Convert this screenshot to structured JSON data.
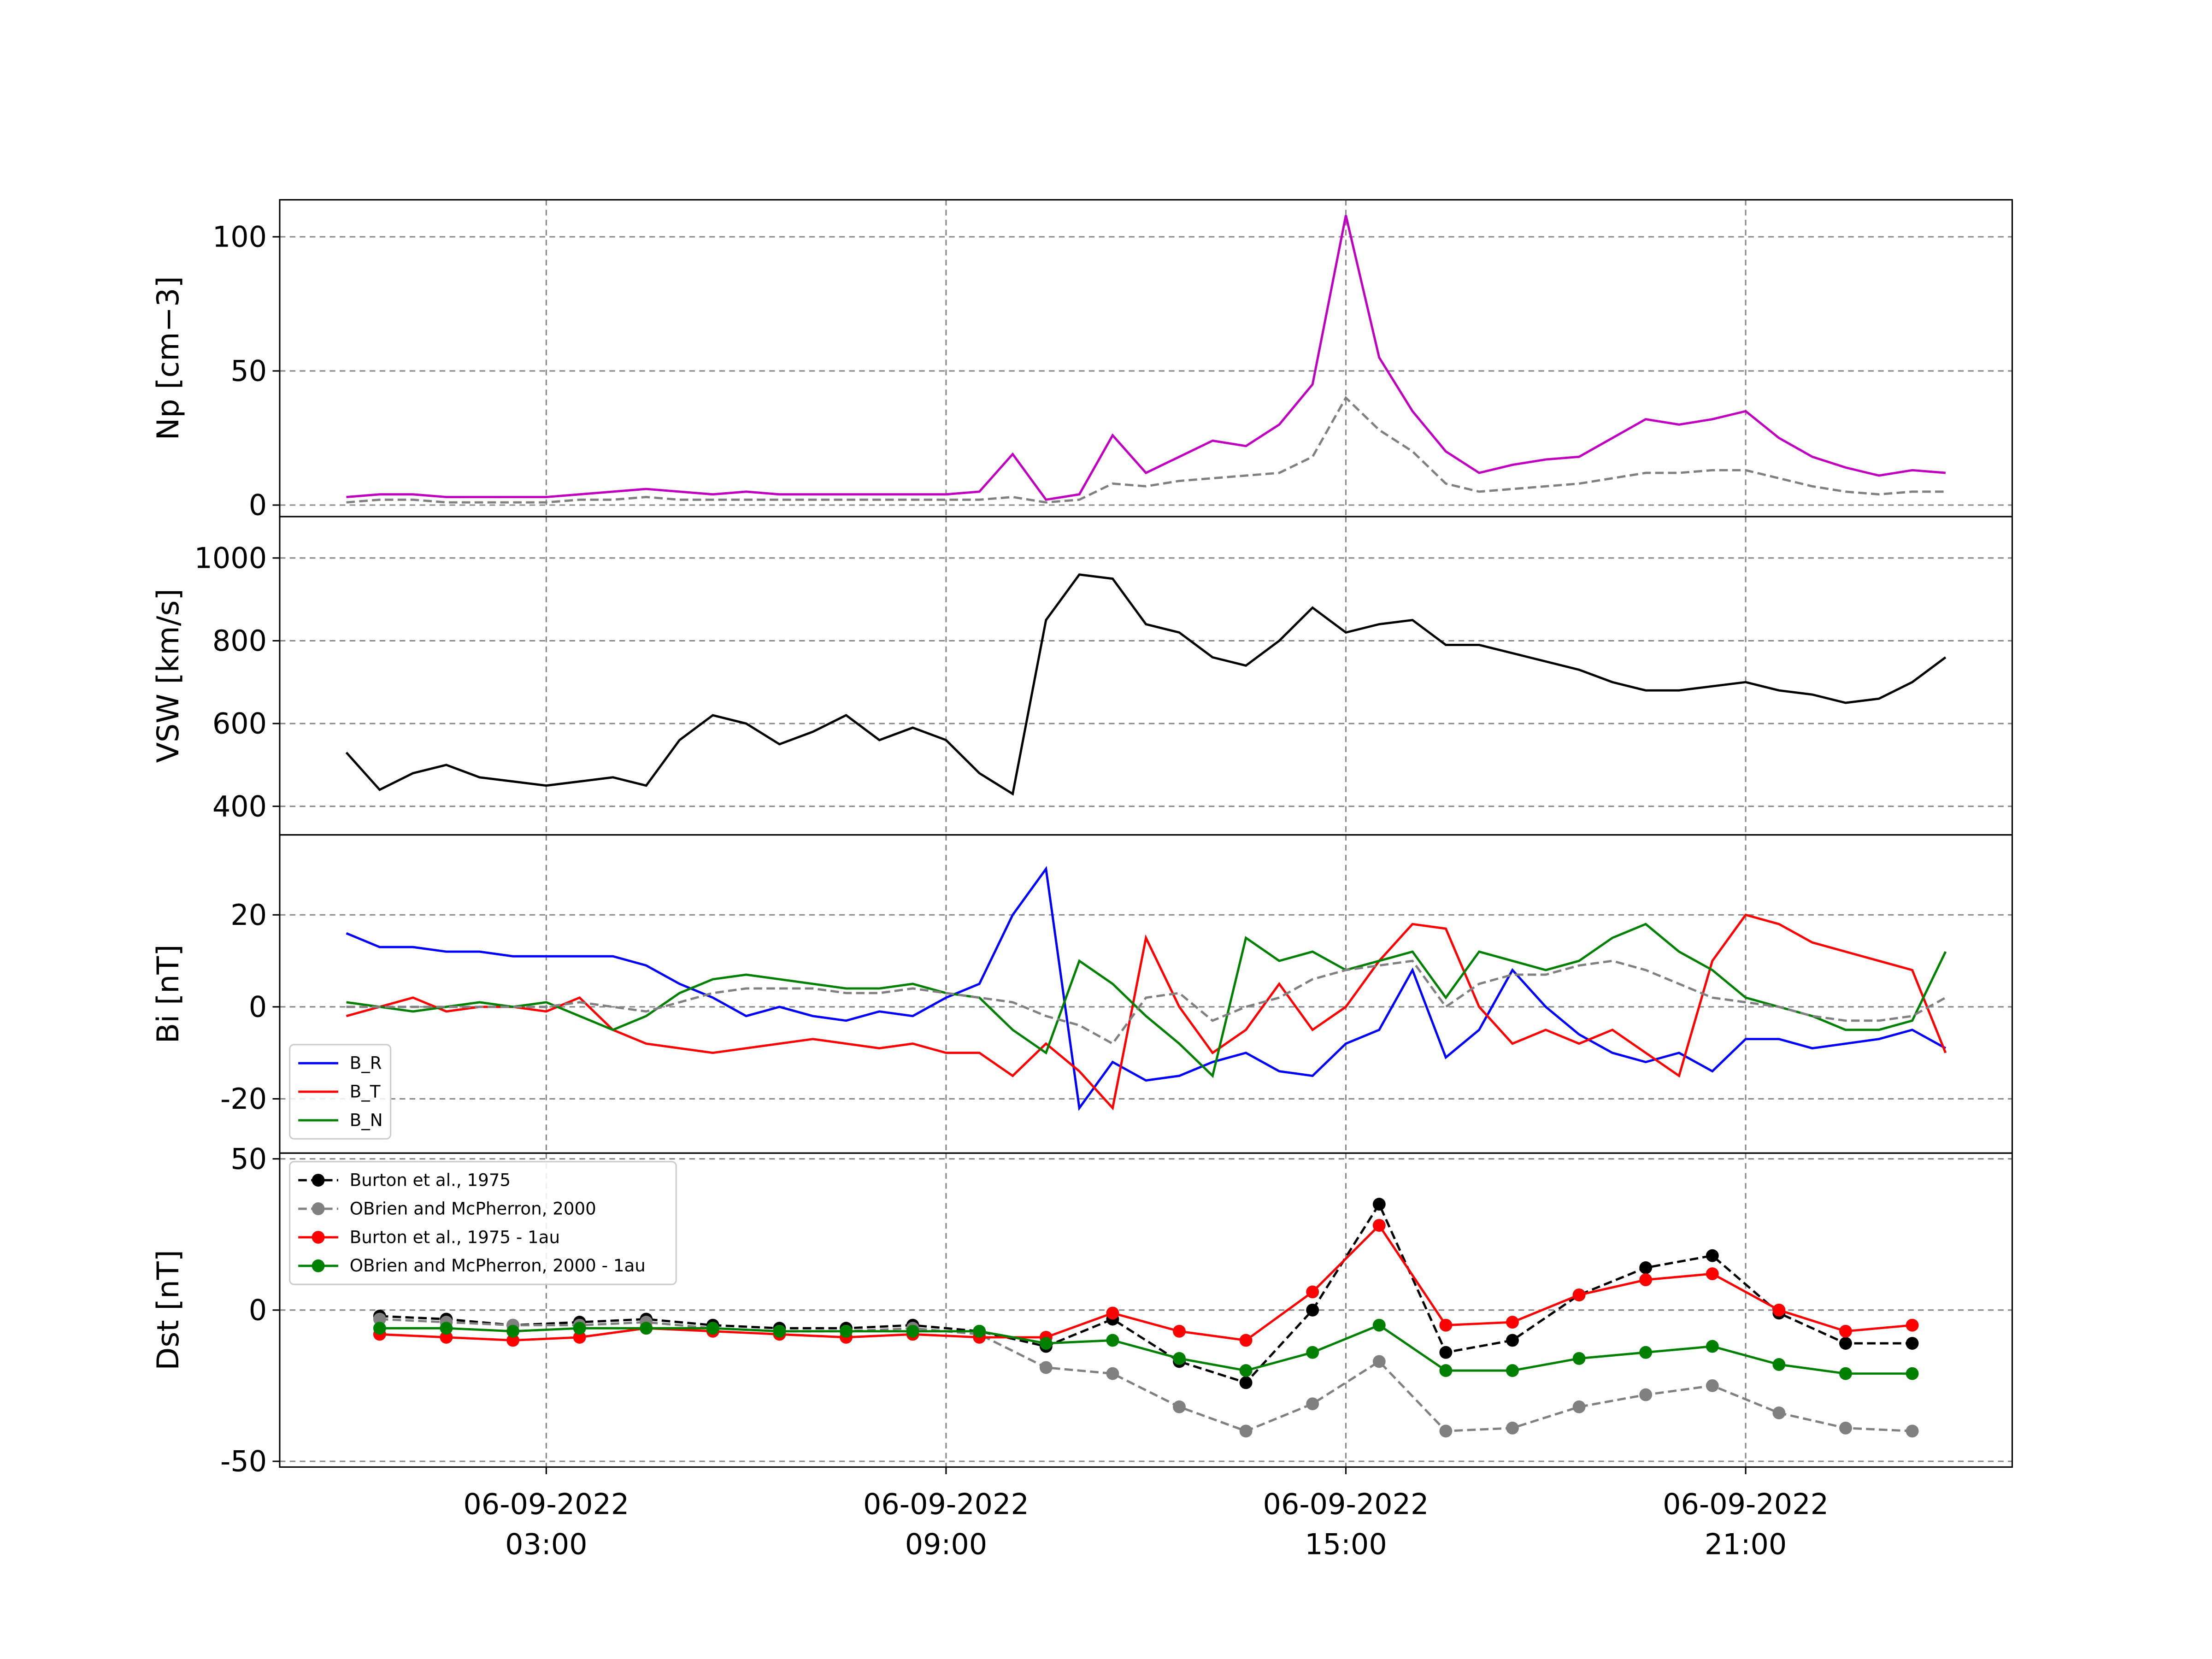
{
  "chart_data": [
    {
      "type": "line",
      "ylabel": "Np [cm−3]",
      "x": [
        "06-09-2022 00:00",
        "06-09-2022 00:30",
        "06-09-2022 01:00",
        "06-09-2022 01:30",
        "06-09-2022 02:00",
        "06-09-2022 02:30",
        "06-09-2022 03:00",
        "06-09-2022 03:30",
        "06-09-2022 04:00",
        "06-09-2022 04:30",
        "06-09-2022 05:00",
        "06-09-2022 05:30",
        "06-09-2022 06:00",
        "06-09-2022 06:30",
        "06-09-2022 07:00",
        "06-09-2022 07:30",
        "06-09-2022 08:00",
        "06-09-2022 08:30",
        "06-09-2022 09:00",
        "06-09-2022 09:30",
        "06-09-2022 10:00",
        "06-09-2022 10:30",
        "06-09-2022 11:00",
        "06-09-2022 11:30",
        "06-09-2022 12:00",
        "06-09-2022 12:30",
        "06-09-2022 13:00",
        "06-09-2022 13:30",
        "06-09-2022 14:00",
        "06-09-2022 14:30",
        "06-09-2022 15:00",
        "06-09-2022 15:30",
        "06-09-2022 16:00",
        "06-09-2022 16:30",
        "06-09-2022 17:00",
        "06-09-2022 17:30",
        "06-09-2022 18:00",
        "06-09-2022 18:30",
        "06-09-2022 19:00",
        "06-09-2022 19:30",
        "06-09-2022 20:00",
        "06-09-2022 20:30",
        "06-09-2022 21:00",
        "06-09-2022 21:30",
        "06-09-2022 22:00",
        "06-09-2022 22:30",
        "06-09-2022 23:00",
        "06-09-2022 23:30",
        "07-09-2022 00:00"
      ],
      "series": [
        {
          "color": "#c000c0",
          "values": [
            3,
            4,
            4,
            3,
            3,
            3,
            3,
            4,
            5,
            6,
            5,
            4,
            5,
            4,
            4,
            4,
            4,
            4,
            4,
            5,
            19,
            2,
            4,
            26,
            12,
            18,
            24,
            22,
            30,
            45,
            108,
            55,
            35,
            20,
            12,
            15,
            17,
            18,
            25,
            32,
            30,
            32,
            35,
            25,
            18,
            14,
            11,
            13,
            12
          ]
        },
        {
          "color": "#808080",
          "dashed": true,
          "values": [
            1,
            2,
            2,
            1,
            1,
            1,
            1,
            2,
            2,
            3,
            2,
            2,
            2,
            2,
            2,
            2,
            2,
            2,
            2,
            2,
            3,
            1,
            2,
            8,
            7,
            9,
            10,
            11,
            12,
            18,
            40,
            28,
            20,
            8,
            5,
            6,
            7,
            8,
            10,
            12,
            12,
            13,
            13,
            10,
            7,
            5,
            4,
            5,
            5
          ]
        }
      ],
      "xlim": [
        "05-09-2022 23:00",
        "07-09-2022 01:00"
      ],
      "ylim": [
        -4.3,
        113.8
      ],
      "yticks": [
        0,
        50,
        100
      ],
      "grid": true
    },
    {
      "type": "line",
      "ylabel": "VSW [km/s]",
      "x": [
        "06-09-2022 00:00",
        "06-09-2022 00:30",
        "06-09-2022 01:00",
        "06-09-2022 01:30",
        "06-09-2022 02:00",
        "06-09-2022 02:30",
        "06-09-2022 03:00",
        "06-09-2022 03:30",
        "06-09-2022 04:00",
        "06-09-2022 04:30",
        "06-09-2022 05:00",
        "06-09-2022 05:30",
        "06-09-2022 06:00",
        "06-09-2022 06:30",
        "06-09-2022 07:00",
        "06-09-2022 07:30",
        "06-09-2022 08:00",
        "06-09-2022 08:30",
        "06-09-2022 09:00",
        "06-09-2022 09:30",
        "06-09-2022 10:00",
        "06-09-2022 10:30",
        "06-09-2022 11:00",
        "06-09-2022 11:30",
        "06-09-2022 12:00",
        "06-09-2022 12:30",
        "06-09-2022 13:00",
        "06-09-2022 13:30",
        "06-09-2022 14:00",
        "06-09-2022 14:30",
        "06-09-2022 15:00",
        "06-09-2022 15:30",
        "06-09-2022 16:00",
        "06-09-2022 16:30",
        "06-09-2022 17:00",
        "06-09-2022 17:30",
        "06-09-2022 18:00",
        "06-09-2022 18:30",
        "06-09-2022 19:00",
        "06-09-2022 19:30",
        "06-09-2022 20:00",
        "06-09-2022 20:30",
        "06-09-2022 21:00",
        "06-09-2022 21:30",
        "06-09-2022 22:00",
        "06-09-2022 22:30",
        "06-09-2022 23:00",
        "06-09-2022 23:30",
        "07-09-2022 00:00"
      ],
      "series": [
        {
          "color": "#000000",
          "values": [
            530,
            440,
            480,
            500,
            470,
            460,
            450,
            460,
            470,
            450,
            560,
            620,
            600,
            550,
            580,
            620,
            560,
            590,
            560,
            480,
            430,
            850,
            960,
            950,
            840,
            820,
            760,
            740,
            800,
            880,
            820,
            840,
            850,
            790,
            790,
            770,
            750,
            730,
            700,
            680,
            680,
            690,
            700,
            680,
            670,
            650,
            660,
            700,
            760
          ]
        }
      ],
      "xlim": [
        "05-09-2022 23:00",
        "07-09-2022 01:00"
      ],
      "ylim": [
        331,
        1100
      ],
      "yticks": [
        400,
        600,
        800,
        1000
      ],
      "grid": true
    },
    {
      "type": "line",
      "ylabel": "Bi [nT]",
      "legend": "lower left",
      "x": [
        "06-09-2022 00:00",
        "06-09-2022 00:30",
        "06-09-2022 01:00",
        "06-09-2022 01:30",
        "06-09-2022 02:00",
        "06-09-2022 02:30",
        "06-09-2022 03:00",
        "06-09-2022 03:30",
        "06-09-2022 04:00",
        "06-09-2022 04:30",
        "06-09-2022 05:00",
        "06-09-2022 05:30",
        "06-09-2022 06:00",
        "06-09-2022 06:30",
        "06-09-2022 07:00",
        "06-09-2022 07:30",
        "06-09-2022 08:00",
        "06-09-2022 08:30",
        "06-09-2022 09:00",
        "06-09-2022 09:30",
        "06-09-2022 10:00",
        "06-09-2022 10:30",
        "06-09-2022 11:00",
        "06-09-2022 11:30",
        "06-09-2022 12:00",
        "06-09-2022 12:30",
        "06-09-2022 13:00",
        "06-09-2022 13:30",
        "06-09-2022 14:00",
        "06-09-2022 14:30",
        "06-09-2022 15:00",
        "06-09-2022 15:30",
        "06-09-2022 16:00",
        "06-09-2022 16:30",
        "06-09-2022 17:00",
        "06-09-2022 17:30",
        "06-09-2022 18:00",
        "06-09-2022 18:30",
        "06-09-2022 19:00",
        "06-09-2022 19:30",
        "06-09-2022 20:00",
        "06-09-2022 20:30",
        "06-09-2022 21:00",
        "06-09-2022 21:30",
        "06-09-2022 22:00",
        "06-09-2022 22:30",
        "06-09-2022 23:00",
        "06-09-2022 23:30",
        "07-09-2022 00:00"
      ],
      "series": [
        {
          "name": "B_R",
          "color": "#0000ff",
          "values": [
            16,
            13,
            13,
            12,
            12,
            11,
            11,
            11,
            11,
            9,
            5,
            2,
            -2,
            0,
            -2,
            -3,
            -1,
            -2,
            2,
            5,
            20,
            30,
            -22,
            -12,
            -16,
            -15,
            -12,
            -10,
            -14,
            -15,
            -8,
            -5,
            8,
            -11,
            -5,
            8,
            0,
            -6,
            -10,
            -12,
            -10,
            -14,
            -7,
            -7,
            -9,
            -8,
            -7,
            -5,
            -9
          ]
        },
        {
          "name": "B_T",
          "color": "#ff0000",
          "values": [
            -2,
            0,
            2,
            -1,
            0,
            0,
            -1,
            2,
            -5,
            -8,
            -9,
            -10,
            -9,
            -8,
            -7,
            -8,
            -9,
            -8,
            -10,
            -10,
            -15,
            -8,
            -14,
            -22,
            15,
            0,
            -10,
            -5,
            5,
            -5,
            0,
            10,
            18,
            17,
            0,
            -8,
            -5,
            -8,
            -5,
            -10,
            -15,
            10,
            20,
            18,
            14,
            12,
            10,
            8,
            -10
          ]
        },
        {
          "name": "B_N",
          "color": "#008000",
          "values": [
            1,
            0,
            -1,
            0,
            1,
            0,
            1,
            -2,
            -5,
            -2,
            3,
            6,
            7,
            6,
            5,
            4,
            4,
            5,
            3,
            2,
            -5,
            -10,
            10,
            5,
            -2,
            -8,
            -15,
            15,
            10,
            12,
            8,
            10,
            12,
            2,
            12,
            10,
            8,
            10,
            15,
            18,
            12,
            8,
            2,
            0,
            -2,
            -5,
            -5,
            -3,
            12
          ]
        },
        {
          "color": "#808080",
          "dashed": true,
          "values": [
            0,
            0,
            0,
            0,
            0,
            0,
            0,
            1,
            0,
            -1,
            1,
            3,
            4,
            4,
            4,
            3,
            3,
            4,
            3,
            2,
            1,
            -2,
            -4,
            -8,
            2,
            3,
            -3,
            0,
            2,
            6,
            8,
            9,
            10,
            0,
            5,
            7,
            7,
            9,
            10,
            8,
            5,
            2,
            1,
            0,
            -2,
            -3,
            -3,
            -2,
            2
          ]
        }
      ],
      "xlim": [
        "05-09-2022 23:00",
        "07-09-2022 01:00"
      ],
      "ylim": [
        -31.8,
        37.4
      ],
      "yticks": [
        -20,
        0,
        20
      ],
      "grid": true
    },
    {
      "type": "line",
      "ylabel": "Dst [nT]",
      "legend": "upper left",
      "x": [
        "06-09-2022 00:30",
        "06-09-2022 01:30",
        "06-09-2022 02:30",
        "06-09-2022 03:30",
        "06-09-2022 04:30",
        "06-09-2022 05:30",
        "06-09-2022 06:30",
        "06-09-2022 07:30",
        "06-09-2022 08:30",
        "06-09-2022 09:30",
        "06-09-2022 10:30",
        "06-09-2022 11:30",
        "06-09-2022 12:30",
        "06-09-2022 13:30",
        "06-09-2022 14:30",
        "06-09-2022 15:30",
        "06-09-2022 16:30",
        "06-09-2022 17:30",
        "06-09-2022 18:30",
        "06-09-2022 19:30",
        "06-09-2022 20:30",
        "06-09-2022 21:30",
        "06-09-2022 22:30",
        "06-09-2022 23:30"
      ],
      "series": [
        {
          "name": "Burton et al., 1975",
          "color": "#000000",
          "dashed": true,
          "marker": true,
          "values": [
            -2,
            -3,
            -5,
            -4,
            -3,
            -5,
            -6,
            -6,
            -5,
            -7,
            -12,
            -3,
            -17,
            -24,
            0,
            35,
            -14,
            -10,
            5,
            14,
            18,
            -1,
            -11,
            -11
          ]
        },
        {
          "name": "OBrien and McPherron, 2000",
          "color": "#808080",
          "dashed": true,
          "marker": true,
          "values": [
            -3,
            -4,
            -5,
            -5,
            -4,
            -6,
            -7,
            -7,
            -6,
            -8,
            -19,
            -21,
            -32,
            -40,
            -31,
            -17,
            -40,
            -39,
            -32,
            -28,
            -25,
            -34,
            -39,
            -40
          ]
        },
        {
          "name": "Burton et al., 1975 - 1au",
          "color": "#ff0000",
          "marker": true,
          "values": [
            -8,
            -9,
            -10,
            -9,
            -6,
            -7,
            -8,
            -9,
            -8,
            -9,
            -9,
            -1,
            -7,
            -10,
            6,
            28,
            -5,
            -4,
            5,
            10,
            12,
            0,
            -7,
            -5
          ]
        },
        {
          "name": "OBrien and McPherron, 2000 - 1au",
          "color": "#008000",
          "marker": true,
          "values": [
            -6,
            -6,
            -7,
            -6,
            -6,
            -6,
            -7,
            -7,
            -7,
            -7,
            -11,
            -10,
            -16,
            -20,
            -14,
            -5,
            -20,
            -20,
            -16,
            -14,
            -12,
            -18,
            -21,
            -21
          ]
        }
      ],
      "xlim": [
        "05-09-2022 23:00",
        "07-09-2022 01:00"
      ],
      "ylim": [
        -51.9,
        51.9
      ],
      "yticks": [
        -50,
        0,
        50
      ],
      "xticks": [
        "06-09-2022 03:00",
        "06-09-2022 09:00",
        "06-09-2022 15:00",
        "06-09-2022 21:00"
      ],
      "grid": true
    }
  ]
}
